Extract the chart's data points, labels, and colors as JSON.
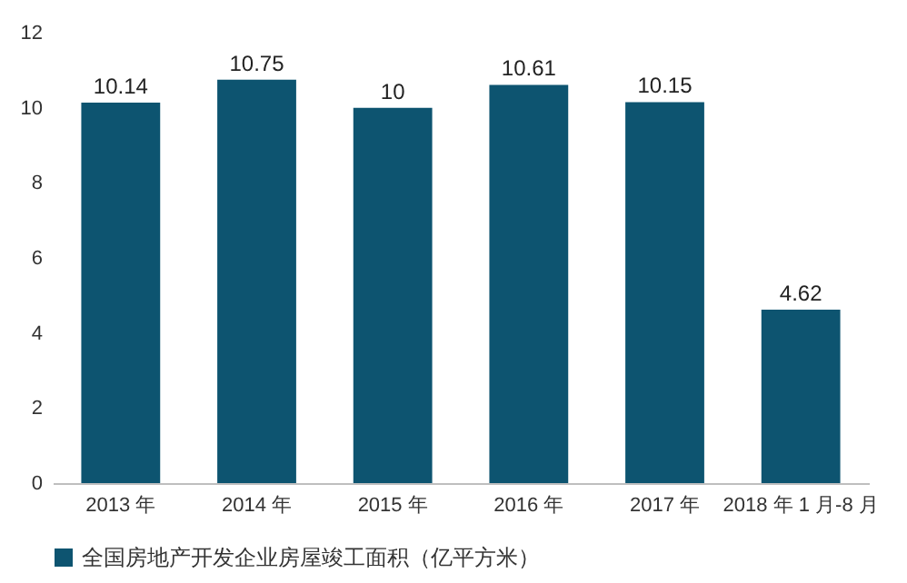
{
  "chart_data": {
    "type": "bar",
    "categories": [
      "2013 年",
      "2014 年",
      "2015 年",
      "2016 年",
      "2017 年",
      "2018 年 1 月-8 月"
    ],
    "series": [
      {
        "name": "全国房地产开发企业房屋竣工面积（亿平方米）",
        "color": "#0d5470",
        "values": [
          10.14,
          10.75,
          10,
          10.61,
          10.15,
          4.62
        ]
      }
    ],
    "ylim": [
      0,
      12
    ],
    "yticks": [
      0,
      2,
      4,
      6,
      8,
      10,
      12
    ],
    "grid": false,
    "legend": "bottom",
    "data_labels": true
  }
}
